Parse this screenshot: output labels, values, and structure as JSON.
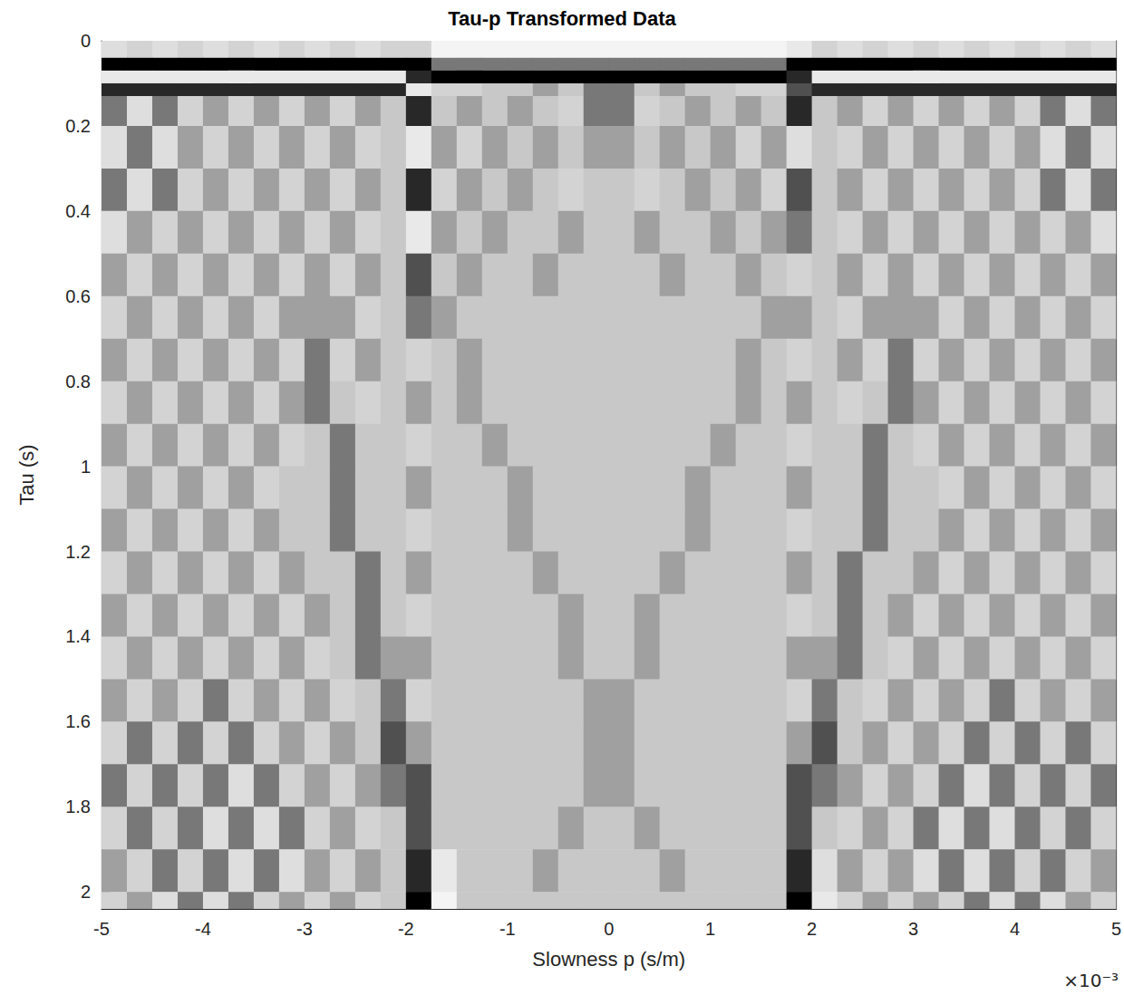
{
  "chart_data": {
    "type": "heatmap",
    "title": "Tau-p Transformed Data",
    "x_label": "Slowness p (s/m)",
    "y_label": "Tau (s)",
    "annotation": "×10⁻³",
    "xlim": [
      -5,
      5
    ],
    "ylim": [
      0,
      2.04
    ],
    "xticks": [
      -5,
      -4,
      -3,
      -2,
      -1,
      0,
      1,
      2,
      3,
      4,
      5
    ],
    "yticks": [
      0,
      0.2,
      0.4,
      0.6,
      0.8,
      1,
      1.2,
      1.4,
      1.6,
      1.8,
      2
    ],
    "color_range": [
      -5,
      5
    ],
    "x_edges": [
      -5,
      -4.75,
      -4.5,
      -4.25,
      -4,
      -3.75,
      -3.5,
      -3.25,
      -3,
      -2.75,
      -2.5,
      -2.25,
      -2,
      -1.75,
      -1.5,
      -1.25,
      -1,
      -0.75,
      -0.5,
      -0.25,
      0,
      0.25,
      0.5,
      0.75,
      1,
      1.25,
      1.5,
      1.75,
      2,
      2.25,
      2.5,
      2.75,
      3,
      3.25,
      3.5,
      3.75,
      4,
      4.25,
      4.5,
      4.75,
      5
    ],
    "y_edges": [
      0,
      0.04,
      0.07,
      0.1,
      0.13,
      0.2,
      0.3,
      0.4,
      0.5,
      0.6,
      0.7,
      0.8,
      0.9,
      1,
      1.1,
      1.2,
      1.3,
      1.4,
      1.5,
      1.6,
      1.7,
      1.8,
      1.9,
      2,
      2.1
    ],
    "cells": [
      [
        -2,
        -1,
        -2,
        -1,
        -2,
        -1,
        -2,
        -1,
        -2,
        -1,
        -2,
        -1,
        -1,
        -4,
        -4,
        -4,
        -4,
        -4,
        -4,
        -4,
        -4,
        -4,
        -4,
        -4,
        -4,
        -4,
        -4,
        -3,
        -1,
        -2,
        -1,
        -2,
        -1,
        -2,
        -1,
        -2,
        -1,
        -2,
        -1,
        -2
      ],
      [
        5,
        5,
        5,
        5,
        5,
        5,
        5,
        5,
        5,
        5,
        5,
        5,
        5,
        2,
        2,
        2,
        2,
        2,
        2,
        2,
        2,
        2,
        2,
        2,
        2,
        2,
        2,
        5,
        5,
        5,
        5,
        5,
        5,
        5,
        5,
        5,
        5,
        5,
        5,
        5
      ],
      [
        -3,
        -3,
        -3,
        -3,
        -3,
        -3,
        -3,
        -3,
        -3,
        -3,
        -3,
        -3,
        4,
        5,
        5,
        5,
        5,
        5,
        5,
        5,
        5,
        5,
        5,
        5,
        5,
        5,
        5,
        4,
        -3,
        -3,
        -3,
        -3,
        -3,
        -3,
        -3,
        -3,
        -3,
        -3,
        -3,
        -3
      ],
      [
        4,
        4,
        4,
        4,
        4,
        4,
        4,
        4,
        4,
        4,
        4,
        4,
        -3,
        -1,
        -1,
        0,
        0,
        1,
        0,
        2,
        2,
        0,
        1,
        0,
        0,
        -1,
        -1,
        3,
        4,
        4,
        4,
        4,
        4,
        4,
        4,
        4,
        4,
        4,
        4,
        4
      ],
      [
        2,
        -2,
        2,
        -1,
        1,
        -1,
        1,
        -1,
        1,
        -1,
        1,
        0,
        4,
        0,
        1,
        0,
        1,
        0,
        -1,
        2,
        2,
        -1,
        0,
        1,
        0,
        1,
        0,
        4,
        0,
        1,
        -1,
        1,
        -1,
        1,
        -1,
        1,
        -1,
        2,
        -2,
        2
      ],
      [
        -2,
        2,
        -2,
        1,
        -1,
        1,
        -1,
        1,
        -1,
        1,
        -1,
        0,
        -3,
        1,
        -1,
        1,
        0,
        1,
        0,
        1,
        1,
        0,
        1,
        0,
        1,
        -1,
        1,
        -2,
        0,
        -1,
        1,
        -1,
        1,
        -1,
        1,
        -1,
        1,
        -2,
        2,
        -2
      ],
      [
        2,
        -2,
        2,
        -1,
        1,
        -1,
        1,
        -1,
        1,
        -1,
        1,
        0,
        4,
        -1,
        1,
        0,
        1,
        0,
        -1,
        0,
        0,
        -1,
        0,
        1,
        0,
        1,
        -1,
        3,
        0,
        1,
        -1,
        1,
        -1,
        1,
        -1,
        1,
        -1,
        2,
        -2,
        2
      ],
      [
        -2,
        1,
        -1,
        1,
        -1,
        1,
        -1,
        1,
        -1,
        1,
        -1,
        0,
        -3,
        1,
        0,
        1,
        0,
        0,
        1,
        0,
        0,
        1,
        0,
        0,
        1,
        0,
        1,
        2,
        0,
        -1,
        1,
        -1,
        1,
        -1,
        1,
        -1,
        1,
        -1,
        1,
        -2
      ],
      [
        1,
        -1,
        1,
        -1,
        1,
        -1,
        1,
        -1,
        1,
        -1,
        1,
        0,
        3,
        0,
        1,
        0,
        0,
        1,
        0,
        0,
        0,
        0,
        1,
        0,
        0,
        1,
        0,
        -1,
        0,
        1,
        -1,
        1,
        -1,
        1,
        -1,
        1,
        -1,
        1,
        -1,
        1
      ],
      [
        -1,
        1,
        -1,
        1,
        -1,
        1,
        -1,
        1,
        1,
        1,
        -1,
        0,
        2,
        1,
        0,
        0,
        0,
        0,
        0,
        0,
        0,
        0,
        0,
        0,
        0,
        0,
        1,
        1,
        0,
        -1,
        1,
        1,
        1,
        -1,
        1,
        -1,
        1,
        -1,
        1,
        -1
      ],
      [
        1,
        -1,
        1,
        -1,
        1,
        -1,
        1,
        -1,
        2,
        -1,
        1,
        0,
        -1,
        0,
        1,
        0,
        0,
        0,
        0,
        0,
        0,
        0,
        0,
        0,
        0,
        1,
        0,
        -1,
        0,
        1,
        -1,
        2,
        -1,
        1,
        -1,
        1,
        -1,
        1,
        -1,
        1
      ],
      [
        -1,
        1,
        -1,
        1,
        -1,
        1,
        -1,
        1,
        2,
        0,
        -1,
        0,
        1,
        0,
        1,
        0,
        0,
        0,
        0,
        0,
        0,
        0,
        0,
        0,
        0,
        1,
        0,
        1,
        0,
        -1,
        0,
        2,
        1,
        -1,
        1,
        -1,
        1,
        -1,
        1,
        -1
      ],
      [
        1,
        -1,
        1,
        -1,
        1,
        -1,
        1,
        -1,
        0,
        2,
        0,
        0,
        -1,
        0,
        0,
        1,
        0,
        0,
        0,
        0,
        0,
        0,
        0,
        0,
        1,
        0,
        0,
        -1,
        0,
        0,
        2,
        0,
        -1,
        1,
        -1,
        1,
        -1,
        1,
        -1,
        1
      ],
      [
        -1,
        1,
        -1,
        1,
        -1,
        1,
        -1,
        0,
        0,
        2,
        0,
        0,
        1,
        0,
        0,
        0,
        1,
        0,
        0,
        0,
        0,
        0,
        0,
        1,
        0,
        0,
        0,
        1,
        0,
        0,
        2,
        0,
        0,
        -1,
        1,
        -1,
        1,
        -1,
        1,
        -1
      ],
      [
        1,
        -1,
        1,
        -1,
        1,
        -1,
        1,
        0,
        0,
        2,
        0,
        0,
        -1,
        0,
        0,
        0,
        1,
        0,
        0,
        0,
        0,
        0,
        0,
        1,
        0,
        0,
        0,
        -1,
        0,
        0,
        2,
        0,
        0,
        1,
        -1,
        1,
        -1,
        1,
        -1,
        1
      ],
      [
        -1,
        1,
        -1,
        1,
        -1,
        1,
        -1,
        1,
        0,
        0,
        2,
        0,
        1,
        0,
        0,
        0,
        0,
        1,
        0,
        0,
        0,
        0,
        1,
        0,
        0,
        0,
        0,
        1,
        0,
        2,
        0,
        0,
        1,
        -1,
        1,
        -1,
        1,
        -1,
        1,
        -1
      ],
      [
        1,
        -1,
        1,
        -1,
        1,
        -1,
        1,
        -1,
        1,
        0,
        2,
        0,
        -1,
        0,
        0,
        0,
        0,
        0,
        1,
        0,
        0,
        1,
        0,
        0,
        0,
        0,
        0,
        -1,
        0,
        2,
        0,
        1,
        -1,
        1,
        -1,
        1,
        -1,
        1,
        -1,
        1
      ],
      [
        -1,
        1,
        -1,
        1,
        -1,
        1,
        -1,
        1,
        -1,
        0,
        2,
        1,
        1,
        0,
        0,
        0,
        0,
        0,
        1,
        0,
        0,
        1,
        0,
        0,
        0,
        0,
        0,
        1,
        1,
        2,
        0,
        -1,
        1,
        -1,
        1,
        -1,
        1,
        -1,
        1,
        -1
      ],
      [
        1,
        -1,
        1,
        -1,
        2,
        -1,
        1,
        -1,
        1,
        -1,
        0,
        2,
        -1,
        0,
        0,
        0,
        0,
        0,
        0,
        1,
        1,
        0,
        0,
        0,
        0,
        0,
        0,
        -1,
        2,
        0,
        -1,
        1,
        -1,
        1,
        -1,
        2,
        -1,
        1,
        -1,
        1
      ],
      [
        -1,
        2,
        -1,
        2,
        -1,
        2,
        -1,
        1,
        -1,
        1,
        0,
        3,
        1,
        0,
        0,
        0,
        0,
        0,
        0,
        1,
        1,
        0,
        0,
        0,
        0,
        0,
        0,
        1,
        3,
        0,
        1,
        -1,
        1,
        -1,
        2,
        -1,
        2,
        -1,
        2,
        -1
      ],
      [
        2,
        -1,
        2,
        -1,
        2,
        -2,
        2,
        -1,
        1,
        -1,
        1,
        2,
        3,
        0,
        0,
        0,
        0,
        0,
        0,
        1,
        1,
        0,
        0,
        0,
        0,
        0,
        0,
        3,
        2,
        1,
        -1,
        1,
        -1,
        2,
        -2,
        2,
        -1,
        2,
        -1,
        2
      ],
      [
        -1,
        2,
        -1,
        2,
        -2,
        2,
        -2,
        2,
        -1,
        1,
        -1,
        0,
        3,
        0,
        0,
        0,
        0,
        0,
        1,
        0,
        0,
        1,
        0,
        0,
        0,
        0,
        0,
        3,
        0,
        -1,
        1,
        -1,
        2,
        -2,
        2,
        -2,
        2,
        -1,
        2,
        -1
      ],
      [
        1,
        -1,
        2,
        -1,
        2,
        -2,
        2,
        -2,
        1,
        -1,
        1,
        0,
        4,
        -3,
        0,
        0,
        0,
        1,
        0,
        0,
        0,
        0,
        1,
        0,
        0,
        0,
        0,
        4,
        -2,
        1,
        -1,
        1,
        -2,
        2,
        -2,
        2,
        -1,
        2,
        -1,
        1
      ],
      [
        -1,
        1,
        -2,
        2,
        -2,
        2,
        -1,
        1,
        -1,
        1,
        -1,
        0,
        5,
        -4,
        0,
        0,
        0,
        0,
        0,
        0,
        0,
        0,
        0,
        0,
        0,
        0,
        0,
        5,
        -3,
        -1,
        1,
        -1,
        1,
        -1,
        2,
        -2,
        2,
        -2,
        1,
        -1
      ]
    ]
  }
}
